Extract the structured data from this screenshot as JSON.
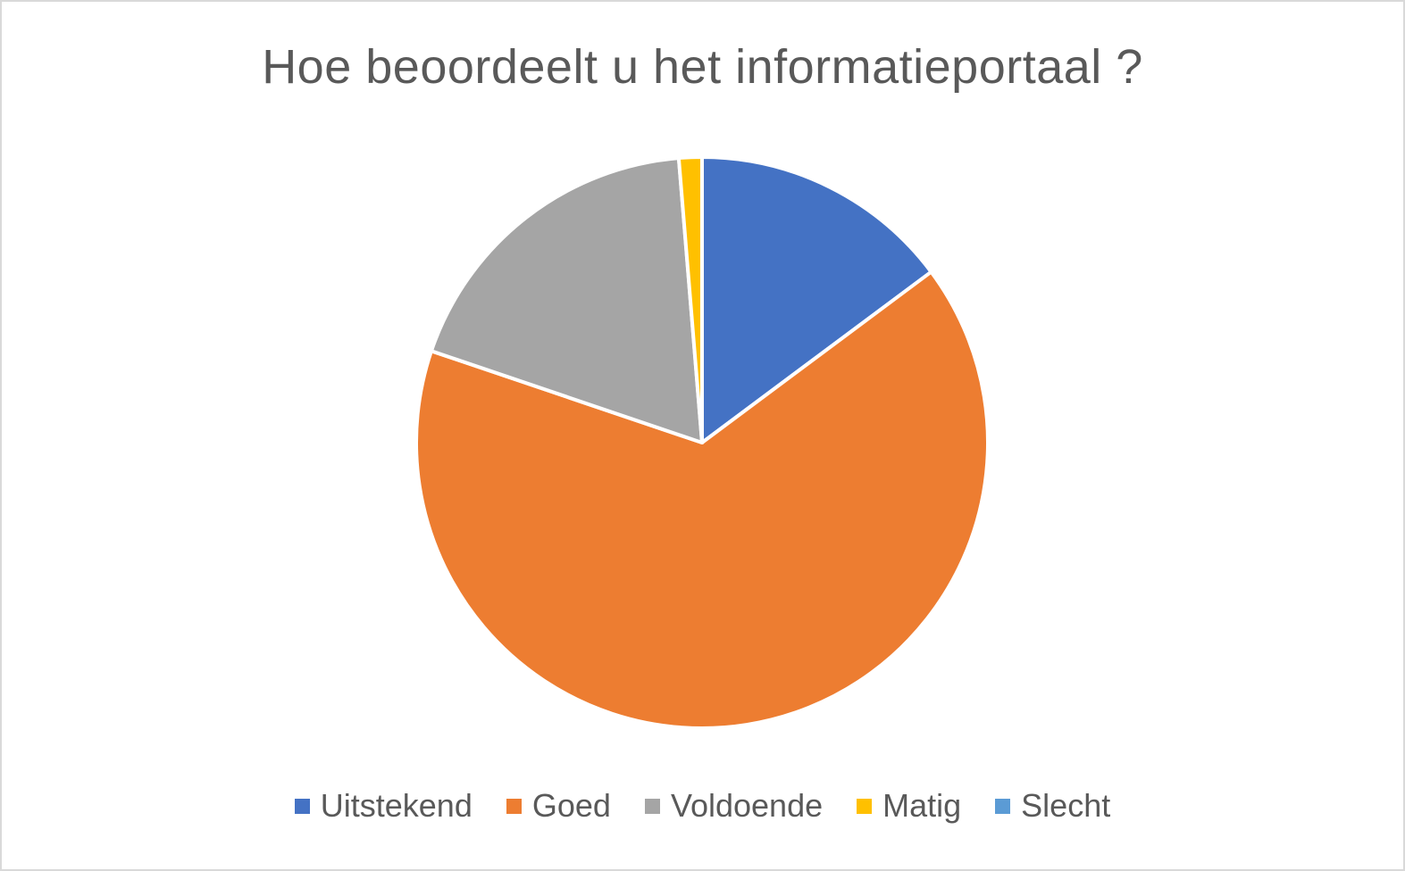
{
  "chart_data": {
    "type": "pie",
    "title": "Hoe beoordeelt u het informatieportaal ?",
    "legend_position": "bottom",
    "start_angle_deg": 0,
    "direction": "clockwise",
    "slices": [
      {
        "name": "Uitstekend",
        "value": 14.8,
        "color": "#4472C4"
      },
      {
        "name": "Goed",
        "value": 65.4,
        "color": "#ED7D31"
      },
      {
        "name": "Voldoende",
        "value": 18.5,
        "color": "#A5A5A5"
      },
      {
        "name": "Matig",
        "value": 1.3,
        "color": "#FFC000"
      },
      {
        "name": "Slecht",
        "value": 0,
        "color": "#5B9BD5"
      }
    ]
  }
}
